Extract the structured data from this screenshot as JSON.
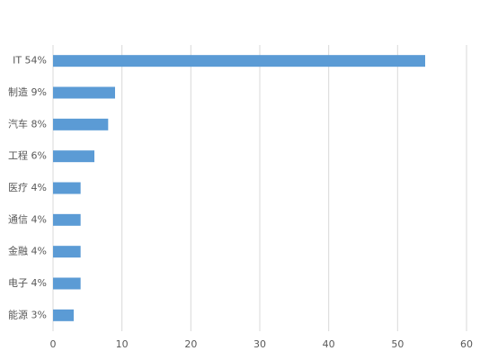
{
  "chart_data": {
    "type": "bar",
    "orientation": "horizontal",
    "categories": [
      "IT 54%",
      "制造 9%",
      "汽车 8%",
      "工程 6%",
      "医疗 4%",
      "通信 4%",
      "金融 4%",
      "电子 4%",
      "能源 3%"
    ],
    "values": [
      54,
      9,
      8,
      6,
      4,
      4,
      4,
      4,
      3
    ],
    "color": "#5b9bd5",
    "xlim": [
      0,
      60
    ],
    "xticks": [
      0,
      10,
      20,
      30,
      40,
      50,
      60
    ],
    "grid": true
  }
}
